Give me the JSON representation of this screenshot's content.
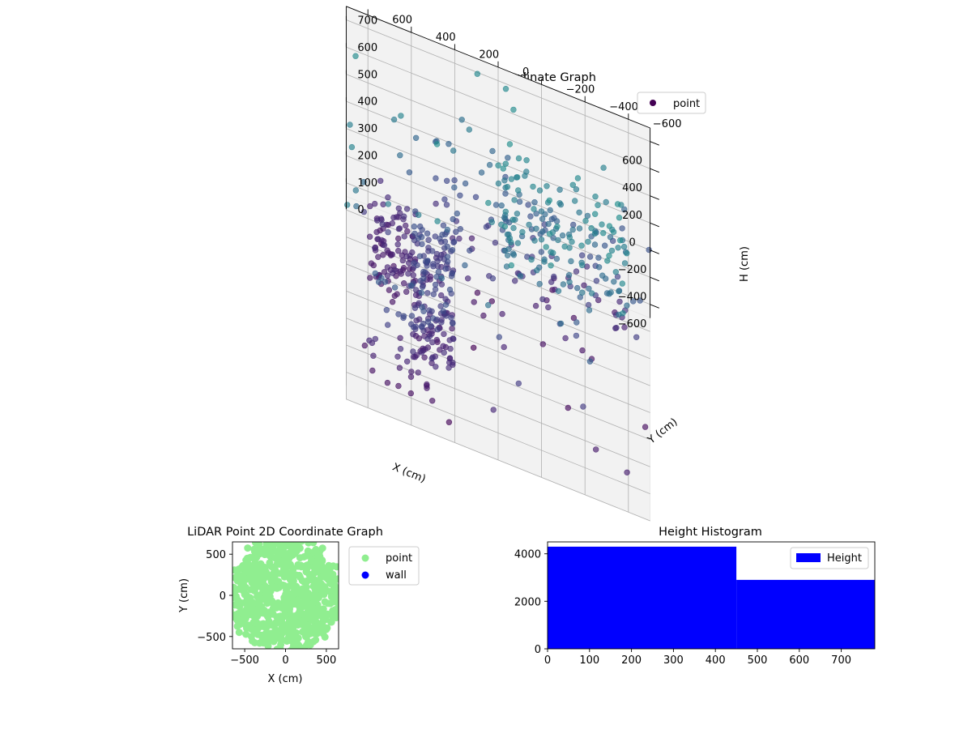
{
  "chart_data": [
    {
      "type": "scatter",
      "projection": "3d",
      "title": "LiDAR Point 3D Coordinate Graph",
      "xlabel": "X (cm)",
      "ylabel": "Y (cm)",
      "zlabel": "H (cm)",
      "xlim": [
        -700,
        700
      ],
      "ylim": [
        -700,
        700
      ],
      "zlim": [
        0,
        750
      ],
      "z_axis_inverted": true,
      "x_ticks": [
        "−600",
        "−400",
        "−200",
        "0",
        "200",
        "400",
        "600"
      ],
      "y_ticks": [
        "−600",
        "−400",
        "−200",
        "0",
        "200",
        "400",
        "600"
      ],
      "z_ticks": [
        "0",
        "100",
        "200",
        "300",
        "400",
        "500",
        "600",
        "700"
      ],
      "grid": true,
      "legend": {
        "position": "top-right",
        "entries": [
          "point"
        ]
      },
      "colormap": "viridis (dark purple at low H to light green at high H)",
      "series": [
        {
          "name": "point",
          "clusters": [
            {
              "x": [
                -600,
                -550
              ],
              "y": [
                300,
                600
              ],
              "h": [
                50,
                450
              ],
              "count": 40
            },
            {
              "x": [
                -550,
                200
              ],
              "y": [
                200,
                400
              ],
              "h": [
                100,
                380
              ],
              "count": 160
            },
            {
              "x": [
                0,
                550
              ],
              "y": [
                380,
                600
              ],
              "h": [
                70,
                200
              ],
              "count": 90
            },
            {
              "x": [
                150,
                600
              ],
              "y": [
                -600,
                300
              ],
              "h": [
                80,
                500
              ],
              "count": 90
            },
            {
              "x": [
                -450,
                300
              ],
              "y": [
                -600,
                0
              ],
              "h": [
                500,
                740
              ],
              "count": 140
            },
            {
              "x": [
                -700,
                700
              ],
              "y": [
                -700,
                700
              ],
              "h": [
                0,
                750
              ],
              "count": 110
            }
          ]
        }
      ]
    },
    {
      "type": "scatter",
      "title": "LiDAR Point 2D Coordinate Graph",
      "xlabel": "X (cm)",
      "ylabel": "Y (cm)",
      "xlim": [
        -650,
        650
      ],
      "ylim": [
        -650,
        650
      ],
      "x_ticks": [
        "−500",
        "0",
        "500"
      ],
      "y_ticks": [
        "−500",
        "0",
        "500"
      ],
      "legend": {
        "position": "outside-right",
        "entries": [
          "point",
          "wall"
        ]
      },
      "series": [
        {
          "name": "point",
          "color": "#90ee90",
          "x_range": [
            -650,
            650
          ],
          "y_range": [
            -650,
            650
          ],
          "count": 700
        },
        {
          "name": "wall",
          "color": "#0000ff",
          "count": 0
        }
      ]
    },
    {
      "type": "bar",
      "title": "Height Histogram",
      "xlabel": "",
      "ylabel": "",
      "xlim": [
        0,
        780
      ],
      "ylim": [
        0,
        4500
      ],
      "x_ticks": [
        "0",
        "100",
        "200",
        "300",
        "400",
        "500",
        "600",
        "700"
      ],
      "y_ticks": [
        "0",
        "2000",
        "4000"
      ],
      "legend": {
        "position": "top-right",
        "entries": [
          "Height"
        ]
      },
      "series": [
        {
          "name": "Height",
          "color": "#0000ff",
          "bins": [
            {
              "from": 0,
              "to": 450,
              "count": 4300
            },
            {
              "from": 450,
              "to": 780,
              "count": 2900
            }
          ]
        }
      ]
    }
  ]
}
